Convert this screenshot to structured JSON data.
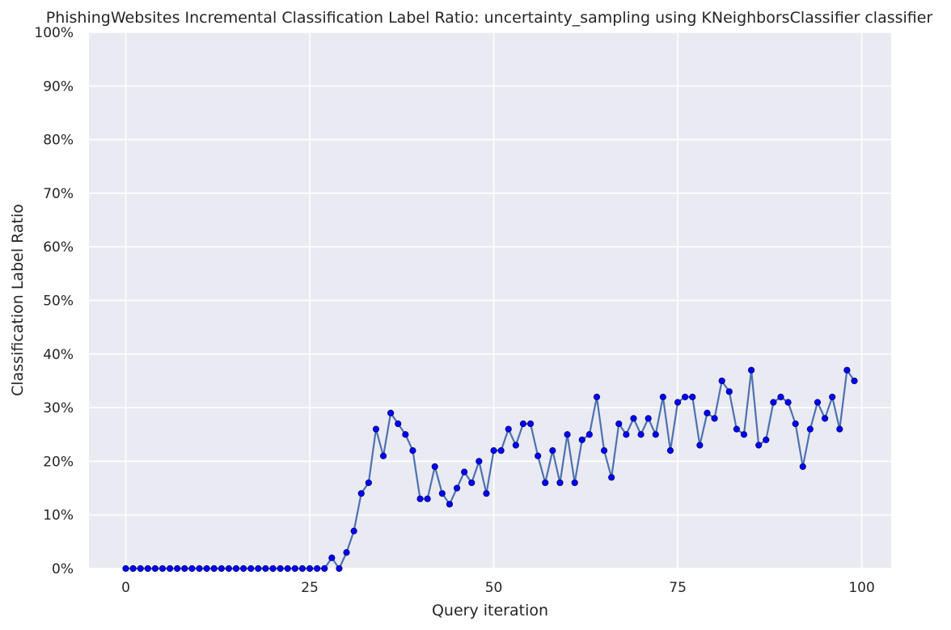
{
  "chart_data": {
    "type": "line",
    "title": "PhishingWebsites Incremental Classification Label Ratio: uncertainty_sampling using KNeighborsClassifier classifier",
    "xlabel": "Query iteration",
    "ylabel": "Classification Label Ratio",
    "xlim": [
      -5,
      104
    ],
    "ylim": [
      0,
      1.0
    ],
    "x_ticks": [
      0,
      25,
      50,
      75,
      100
    ],
    "x_tick_labels": [
      "0",
      "25",
      "50",
      "75",
      "100"
    ],
    "y_ticks": [
      0,
      0.1,
      0.2,
      0.3,
      0.4,
      0.5,
      0.6,
      0.7,
      0.8,
      0.9,
      1.0
    ],
    "y_tick_labels": [
      "0%",
      "10%",
      "20%",
      "30%",
      "40%",
      "50%",
      "60%",
      "70%",
      "80%",
      "90%",
      "100%"
    ],
    "grid": true,
    "legend": "none",
    "colors": {
      "background": "#eaeaf2",
      "grid": "#ffffff",
      "line": "#4c72b0",
      "marker": "#0000ff",
      "marker_edge": "#00008b"
    },
    "series": [
      {
        "x": [
          0,
          1,
          2,
          3,
          4,
          5,
          6,
          7,
          8,
          9,
          10,
          11,
          12,
          13,
          14,
          15,
          16,
          17,
          18,
          19,
          20,
          21,
          22,
          23,
          24,
          25,
          26,
          27,
          28,
          29,
          30,
          31,
          32,
          33,
          34,
          35,
          36,
          37,
          38,
          39,
          40,
          41,
          42,
          43,
          44,
          45,
          46,
          47,
          48,
          49,
          50,
          51,
          52,
          53,
          54,
          55,
          56,
          57,
          58,
          59,
          60,
          61,
          62,
          63,
          64,
          65,
          66,
          67,
          68,
          69,
          70,
          71,
          72,
          73,
          74,
          75,
          76,
          77,
          78,
          79,
          80,
          81,
          82,
          83,
          84,
          85,
          86,
          87,
          88,
          89,
          90,
          91,
          92,
          93,
          94,
          95,
          96,
          97,
          98,
          99
        ],
        "values": [
          0,
          0,
          0,
          0,
          0,
          0,
          0,
          0,
          0,
          0,
          0,
          0,
          0,
          0,
          0,
          0,
          0,
          0,
          0,
          0,
          0,
          0,
          0,
          0,
          0,
          0,
          0,
          0,
          0.02,
          0,
          0.03,
          0.07,
          0.14,
          0.16,
          0.26,
          0.21,
          0.29,
          0.27,
          0.25,
          0.22,
          0.13,
          0.13,
          0.19,
          0.14,
          0.12,
          0.15,
          0.18,
          0.16,
          0.2,
          0.14,
          0.22,
          0.22,
          0.26,
          0.23,
          0.27,
          0.27,
          0.21,
          0.16,
          0.22,
          0.16,
          0.25,
          0.16,
          0.24,
          0.25,
          0.32,
          0.22,
          0.17,
          0.27,
          0.25,
          0.28,
          0.25,
          0.28,
          0.25,
          0.32,
          0.22,
          0.31,
          0.32,
          0.32,
          0.23,
          0.29,
          0.28,
          0.35,
          0.33,
          0.26,
          0.25,
          0.37,
          0.23,
          0.24,
          0.31,
          0.32,
          0.31,
          0.27,
          0.19,
          0.26,
          0.31,
          0.28,
          0.32,
          0.26,
          0.37,
          0.35
        ]
      }
    ]
  }
}
